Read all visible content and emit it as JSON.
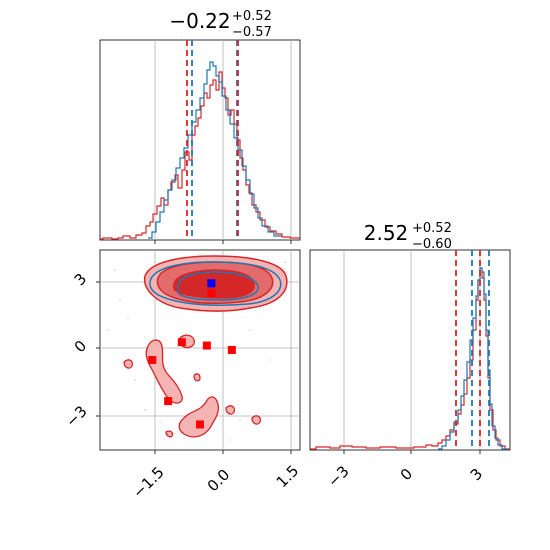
{
  "panels": {
    "x_title": {
      "main": "−0.22",
      "sup": "+0.52",
      "sub": "−0.57"
    },
    "y_title": {
      "main": "2.52",
      "sup": "+0.52",
      "sub": "−0.60"
    }
  },
  "colors": {
    "red": "#d62728",
    "blue": "#1f77b4",
    "pure_blue": "#0000ff",
    "pure_red": "#ff0000",
    "grid": "#b0b0b0"
  },
  "chart_data": [
    {
      "type": "area",
      "name": "x-marginal-histogram",
      "xlim": [
        -2.6,
        1.8
      ],
      "grid": true,
      "quantile_lines_red": [
        -0.79,
        0.3
      ],
      "quantile_lines_blue": [
        -0.7,
        0.31
      ],
      "tick_labels": [
        "−1.5",
        "0.0",
        "1.5"
      ]
    },
    {
      "type": "scatter",
      "name": "x-vs-y-contour",
      "xlim": [
        -2.6,
        1.8
      ],
      "ylim": [
        -4.5,
        4.5
      ],
      "grid": true,
      "x_tick_labels": [
        "−1.5",
        "0.0",
        "1.5"
      ],
      "y_tick_labels": [
        "3",
        "0",
        "−3"
      ],
      "red_square_markers": [
        {
          "x": -0.8,
          "y": 0.35
        },
        {
          "x": -0.25,
          "y": 0.2
        },
        {
          "x": 0.3,
          "y": 0.0
        },
        {
          "x": -1.45,
          "y": -0.45
        },
        {
          "x": -1.1,
          "y": -2.3
        },
        {
          "x": -0.4,
          "y": -3.35
        },
        {
          "x": -0.15,
          "y": 2.55
        }
      ],
      "blue_square_markers": [
        {
          "x": -0.15,
          "y": 3.0
        }
      ]
    },
    {
      "type": "area",
      "name": "y-marginal-histogram",
      "xlim": [
        -4.5,
        4.5
      ],
      "grid": true,
      "quantile_lines_red": [
        1.9,
        3.0
      ],
      "quantile_lines_blue": [
        2.7,
        3.4
      ],
      "tick_labels": [
        "−3",
        "0",
        "3"
      ]
    }
  ]
}
